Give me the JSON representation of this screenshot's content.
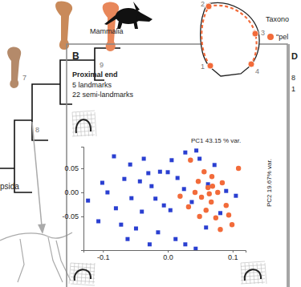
{
  "chart_data": {
    "type": "scatter",
    "title": "Proximal end",
    "subtitle": [
      "5 landmarks",
      "22 semi-landmarks"
    ],
    "x_label": "PC1 43.15 % var.",
    "y_label": "PC2 19.67% var.",
    "xlim": [
      -0.13,
      0.12
    ],
    "xticks": [
      -0.1,
      {
        "value": 0,
        "label": "0.0"
      },
      0.1
    ],
    "ylim": [
      -0.12,
      0.095
    ],
    "yticks": [
      0.05,
      {
        "value": 0,
        "label": "0.00"
      },
      -0.05
    ],
    "series": [
      {
        "color": "#2a3fd1",
        "marker": "square",
        "x": [
          -0.083,
          -0.058,
          0.027,
          0.044,
          -0.037,
          -0.012,
          0.0,
          0.015,
          0.049,
          0.072,
          -0.067,
          -0.043,
          -0.025,
          0.025,
          0.062,
          0.09,
          -0.093,
          -0.056,
          -0.019,
          -0.006,
          0.004,
          -0.08,
          -0.04,
          0.037,
          -0.107,
          -0.072,
          -0.049,
          -0.015,
          0.012,
          0.027,
          -0.028,
          0.059,
          0.081,
          -0.123,
          -0.101,
          0.006,
          -0.03,
          -0.062,
          0.043,
          0.105
        ],
        "values": [
          0.075,
          0.058,
          0.083,
          0.087,
          0.07,
          0.043,
          0.042,
          0.03,
          0.07,
          0.057,
          0.028,
          0.023,
          0.013,
          0.007,
          0.017,
          0.003,
          0.0,
          -0.012,
          -0.013,
          -0.027,
          -0.037,
          -0.033,
          -0.04,
          -0.02,
          -0.06,
          -0.067,
          -0.075,
          -0.083,
          -0.097,
          -0.108,
          -0.108,
          -0.073,
          -0.043,
          -0.017,
          0.02,
          0.067,
          0.04,
          -0.097,
          -0.117,
          -0.007
        ]
      },
      {
        "name": "\"pel",
        "color": "#f26b3a",
        "marker": "circle",
        "x": [
          0.056,
          0.068,
          0.047,
          0.062,
          0.077,
          0.042,
          0.052,
          0.067,
          0.084,
          0.09,
          0.059,
          0.074,
          0.094,
          0.099,
          0.081,
          0.032,
          0.109,
          0.035,
          0.019,
          0.064,
          0.049,
          0.069
        ],
        "values": [
          0.043,
          0.033,
          0.023,
          0.01,
          0.0,
          0.0,
          -0.01,
          -0.02,
          0.02,
          -0.027,
          -0.037,
          -0.053,
          -0.047,
          -0.067,
          -0.077,
          -0.03,
          0.05,
          0.067,
          -0.008,
          -0.003,
          -0.05,
          0.013
        ]
      }
    ]
  },
  "figure": {
    "panel_label": "B",
    "clade_labels": [
      "Mammalia",
      "psida"
    ],
    "node_labels": [
      "9",
      "7",
      "8"
    ],
    "landmark_labels": [
      "1",
      "2",
      "3",
      "4"
    ],
    "legend_title": "Taxono",
    "side_panel": {
      "label": "D",
      "lines": [
        "8",
        "1"
      ]
    }
  }
}
